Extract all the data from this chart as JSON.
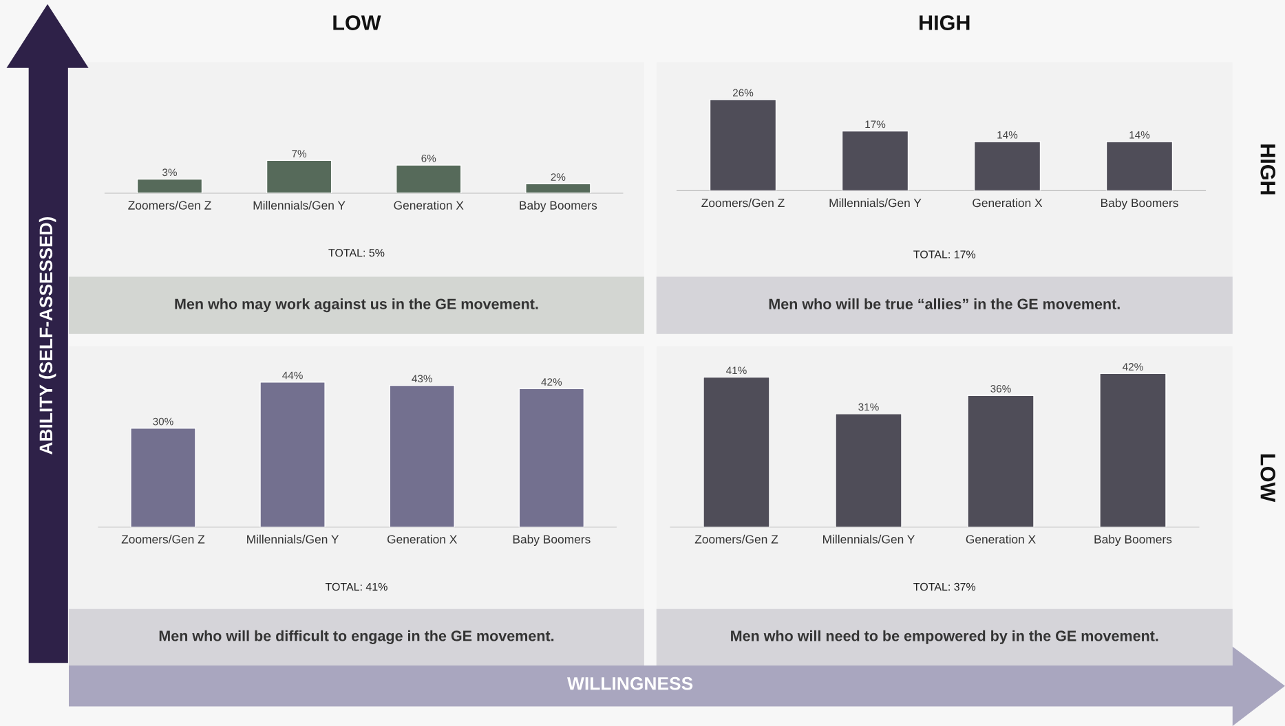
{
  "chart_data": [
    {
      "type": "bar",
      "title": "LOW",
      "ylabel": "ABILITY (SELF-ASSESSED)",
      "categories": [
        "Zoomers/Gen Z",
        "Millennials/Gen Y",
        "Generation X",
        "Baby Boomers"
      ],
      "values": [
        3,
        7,
        6,
        2
      ],
      "value_labels": [
        "3%",
        "7%",
        "6%",
        "2%"
      ],
      "color": "#566a5a",
      "tick_labels": "x",
      "grid": false,
      "annotations": [
        "TOTAL: 5%",
        "Men who may work against us in the GE movement."
      ]
    },
    {
      "type": "bar",
      "title": "HIGH",
      "y2label": "HIGH",
      "categories": [
        "Zoomers/Gen Z",
        "Millennials/Gen Y",
        "Generation X",
        "Baby Boomers"
      ],
      "values": [
        26,
        17,
        14,
        14
      ],
      "value_labels": [
        "26%",
        "17%",
        "14%",
        "14%"
      ],
      "color": "#4f4d58",
      "tick_labels": "x",
      "grid": false,
      "annotations": [
        "TOTAL: 17%",
        "Men who will be true “allies” in the GE movement."
      ]
    },
    {
      "type": "bar",
      "xlabel": "WILLINGNESS",
      "categories": [
        "Zoomers/Gen Z",
        "Millennials/Gen Y",
        "Generation X",
        "Baby Boomers"
      ],
      "values": [
        30,
        44,
        43,
        42
      ],
      "value_labels": [
        "30%",
        "44%",
        "43%",
        "42%"
      ],
      "color": "#73708f",
      "tick_labels": "x",
      "grid": false,
      "annotations": [
        "TOTAL: 41%",
        "Men who will be difficult to engage in the GE movement."
      ]
    },
    {
      "type": "bar",
      "y2label": "LOW",
      "categories": [
        "Zoomers/Gen Z",
        "Millennials/Gen Y",
        "Generation X",
        "Baby Boomers"
      ],
      "values": [
        41,
        31,
        36,
        42
      ],
      "value_labels": [
        "41%",
        "31%",
        "36%",
        "42%"
      ],
      "color": "#4f4d58",
      "tick_labels": "x",
      "grid": false,
      "annotations": [
        "TOTAL: 37%",
        "Men who will need to be empowered by in the GE movement."
      ]
    }
  ]
}
